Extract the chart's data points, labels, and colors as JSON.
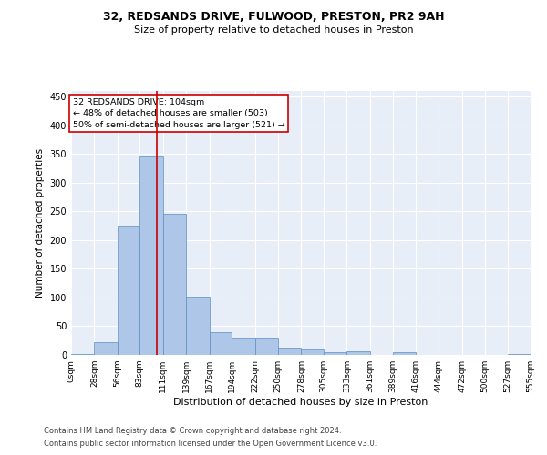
{
  "title1": "32, REDSANDS DRIVE, FULWOOD, PRESTON, PR2 9AH",
  "title2": "Size of property relative to detached houses in Preston",
  "xlabel": "Distribution of detached houses by size in Preston",
  "ylabel": "Number of detached properties",
  "annotation_line1": "32 REDSANDS DRIVE: 104sqm",
  "annotation_line2": "← 48% of detached houses are smaller (503)",
  "annotation_line3": "50% of semi-detached houses are larger (521) →",
  "footer1": "Contains HM Land Registry data © Crown copyright and database right 2024.",
  "footer2": "Contains public sector information licensed under the Open Government Licence v3.0.",
  "property_size": 104,
  "bin_edges": [
    0,
    28,
    56,
    83,
    111,
    139,
    167,
    194,
    222,
    250,
    278,
    305,
    333,
    361,
    389,
    416,
    444,
    472,
    500,
    527,
    555
  ],
  "bar_heights": [
    1,
    23,
    225,
    348,
    246,
    101,
    40,
    30,
    30,
    12,
    10,
    5,
    6,
    0,
    5,
    0,
    0,
    0,
    0,
    1
  ],
  "bar_color": "#aec6e8",
  "bar_edge_color": "#5a8fc0",
  "vline_color": "#cc0000",
  "background_color": "#e8eef8",
  "grid_color": "#ffffff",
  "ylim": [
    0,
    460
  ],
  "yticks": [
    0,
    50,
    100,
    150,
    200,
    250,
    300,
    350,
    400,
    450
  ]
}
